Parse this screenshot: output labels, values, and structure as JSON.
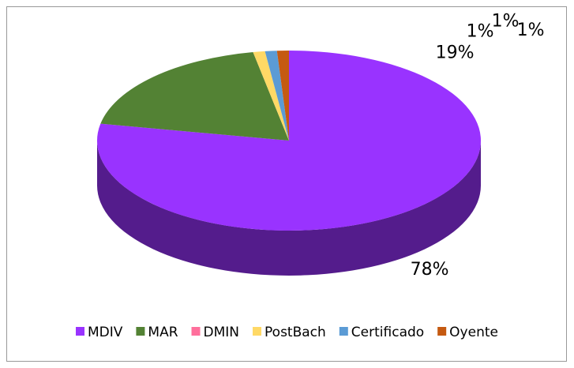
{
  "chart_data": {
    "type": "pie",
    "categories": [
      "MDIV",
      "MAR",
      "DMIN",
      "PostBach",
      "Certificado",
      "Oyente"
    ],
    "values": [
      78,
      19,
      0,
      1,
      1,
      1
    ],
    "value_labels": [
      "78%",
      "19%",
      null,
      "1%",
      "1%",
      "1%"
    ],
    "colors": [
      "#9933ff",
      "#538234",
      "#ff6f9c",
      "#ffd966",
      "#5b9bd5",
      "#c55a11"
    ],
    "legend": "bottom"
  }
}
